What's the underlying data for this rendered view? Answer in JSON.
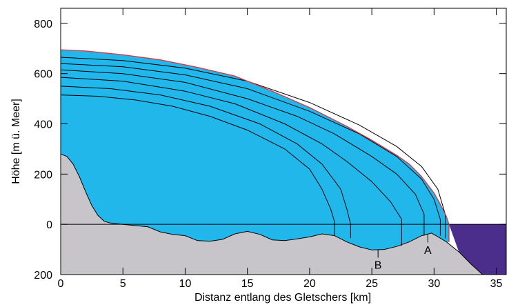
{
  "chart_data": {
    "type": "glacier-section",
    "x_label": "Distanz entlang des Gletschers [km]",
    "y_label": "Höhe  [m ü. Meer]",
    "xlim": [
      0,
      35.8
    ],
    "ylim": [
      -200,
      860
    ],
    "xticks": [
      0,
      5,
      10,
      15,
      20,
      25,
      30,
      35
    ],
    "yticks": [
      {
        "value": -200,
        "label": "200"
      },
      0,
      200,
      400,
      600,
      800
    ],
    "sea_level": 0,
    "ice_color": "#22b7ea",
    "bed_color": "#c8c5ca",
    "ocean_color": "#4b2d8c",
    "surface": {
      "color": "#e0323c",
      "x": [
        0,
        2,
        5,
        8,
        11,
        14,
        17,
        20,
        23,
        25,
        27,
        28,
        29,
        30,
        30.5,
        31,
        31.2,
        31.2
      ],
      "values": [
        695,
        690,
        675,
        655,
        625,
        590,
        530,
        465,
        390,
        335,
        275,
        240,
        190,
        125,
        80,
        30,
        0,
        -70
      ]
    },
    "bed": {
      "color": "#000000",
      "x": [
        0,
        0.5,
        1,
        1.5,
        2,
        2.5,
        3,
        3.5,
        4,
        5,
        6,
        7,
        8,
        9,
        10,
        11,
        12,
        13,
        14,
        15,
        16,
        17,
        18,
        19,
        20,
        21,
        22,
        23,
        24,
        25,
        26,
        27,
        28,
        29,
        29.8,
        30.5,
        31,
        32,
        33,
        33.9
      ],
      "values": [
        280,
        270,
        240,
        190,
        130,
        75,
        35,
        12,
        5,
        0,
        -5,
        -10,
        -30,
        -40,
        -45,
        -65,
        -67,
        -60,
        -38,
        -28,
        -40,
        -62,
        -65,
        -58,
        -50,
        -38,
        -45,
        -70,
        -90,
        -102,
        -100,
        -88,
        -70,
        -45,
        -35,
        -55,
        -70,
        -110,
        -160,
        -200
      ]
    },
    "layers": [
      {
        "x": [
          0,
          3,
          6,
          9,
          12,
          15,
          18,
          20,
          21,
          21.7,
          22,
          22
        ],
        "values": [
          515,
          510,
          495,
          470,
          430,
          375,
          300,
          220,
          140,
          60,
          10,
          -45
        ]
      },
      {
        "x": [
          0,
          4,
          8,
          12,
          16,
          19,
          21,
          22.5,
          23,
          23.3,
          23.3
        ],
        "values": [
          550,
          540,
          515,
          470,
          400,
          320,
          240,
          140,
          60,
          0,
          -55
        ]
      },
      {
        "x": [
          0,
          5,
          10,
          14,
          18,
          21,
          23,
          25,
          26.5,
          27.4,
          27.4
        ],
        "values": [
          585,
          570,
          530,
          480,
          400,
          320,
          250,
          170,
          90,
          20,
          -85
        ]
      },
      {
        "x": [
          0,
          5,
          10,
          15,
          19,
          22,
          25,
          27,
          28.5,
          29.2,
          29.2
        ],
        "values": [
          615,
          600,
          565,
          500,
          430,
          360,
          270,
          200,
          120,
          40,
          -45
        ]
      },
      {
        "x": [
          0,
          5,
          10,
          15,
          20,
          24,
          27,
          29,
          30,
          30.5,
          30.5
        ],
        "values": [
          640,
          627,
          595,
          540,
          450,
          360,
          270,
          180,
          100,
          20,
          -45
        ]
      },
      {
        "x": [
          0,
          5,
          10,
          15,
          20,
          24,
          27,
          29,
          30.3,
          30.9,
          30.9
        ],
        "values": [
          665,
          652,
          622,
          570,
          485,
          395,
          310,
          230,
          140,
          40,
          -55
        ]
      }
    ],
    "annotations": [
      {
        "text": "A",
        "x": 29.5,
        "y": -100
      },
      {
        "text": "B",
        "x": 25.5,
        "y": -160
      }
    ]
  }
}
